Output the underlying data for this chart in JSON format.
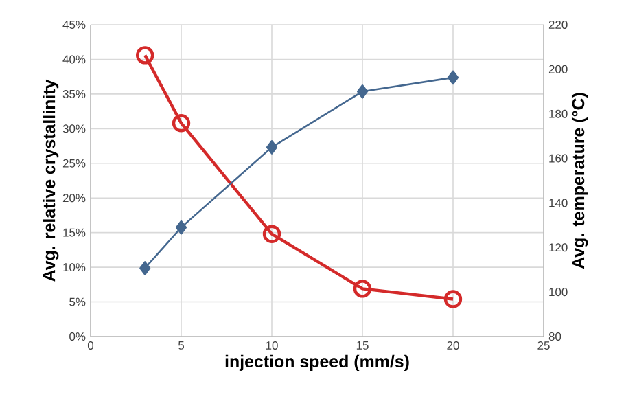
{
  "chart_data": {
    "type": "line",
    "xlabel": "injection speed (mm/s)",
    "ylabel": "Avg. relative crystallinity",
    "y2label": "Avg. temperature (°C)",
    "xlim": [
      0,
      25
    ],
    "xticks": [
      0,
      5,
      10,
      15,
      20,
      25
    ],
    "ylim": [
      0,
      45
    ],
    "yticks": [
      {
        "value": 0,
        "label": "0%"
      },
      {
        "value": 5,
        "label": "5%"
      },
      {
        "value": 10,
        "label": "10%"
      },
      {
        "value": 15,
        "label": "15%"
      },
      {
        "value": 20,
        "label": "20%"
      },
      {
        "value": 25,
        "label": "25%"
      },
      {
        "value": 30,
        "label": "30%"
      },
      {
        "value": 35,
        "label": "35%"
      },
      {
        "value": 40,
        "label": "40%"
      },
      {
        "value": 45,
        "label": "45%"
      }
    ],
    "y2lim": [
      80,
      220
    ],
    "y2ticks": [
      80,
      100,
      120,
      140,
      160,
      180,
      200,
      220
    ],
    "grid": true,
    "line_style": "solid",
    "series": [
      {
        "color": "#d42a2a",
        "marker": "circle",
        "x": [
          3,
          5,
          10,
          15,
          20
        ],
        "values": [
          40.6,
          30.8,
          14.8,
          6.9,
          5.4
        ]
      },
      {
        "color": "#44678f",
        "marker": "diamond",
        "axis": "y2",
        "x": [
          3,
          5,
          10,
          15,
          20
        ],
        "values": [
          110.7,
          129,
          165,
          190,
          196.3
        ]
      }
    ]
  }
}
